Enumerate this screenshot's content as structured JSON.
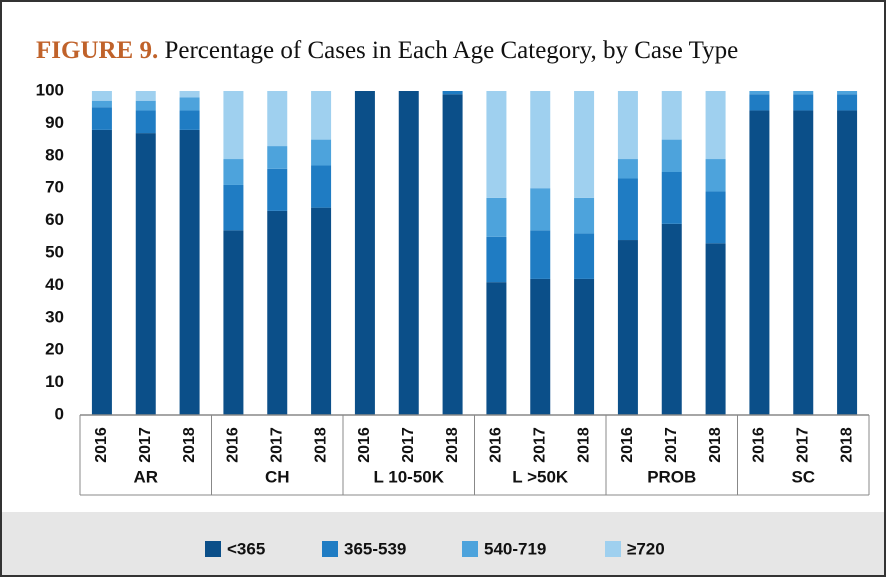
{
  "chart_data": {
    "type": "stacked_bar",
    "title_label": "FIGURE 9.",
    "title": "Percentage of Cases in Each Age Category, by Case Type",
    "categories": [
      "2016",
      "2017",
      "2018",
      "2016",
      "2017",
      "2018",
      "2016",
      "2017",
      "2018",
      "2016",
      "2017",
      "2018",
      "2016",
      "2017",
      "2018",
      "2016",
      "2017",
      "2018"
    ],
    "groups": [
      "AR",
      "CH",
      "L 10-50K",
      "L >50K",
      "PROB",
      "SC"
    ],
    "series": [
      {
        "name": "<365",
        "color": "#0b4f89",
        "values": [
          88,
          87,
          88,
          57,
          63,
          64,
          100,
          100,
          99,
          41,
          42,
          42,
          54,
          59,
          53,
          94,
          94,
          94
        ]
      },
      {
        "name": "365-539",
        "color": "#1f7cc3",
        "values": [
          7,
          7,
          6,
          14,
          13,
          13,
          0,
          0,
          1,
          14,
          15,
          14,
          19,
          16,
          16,
          5,
          5,
          5
        ]
      },
      {
        "name": "540-719",
        "color": "#4da3dc",
        "values": [
          2,
          3,
          4,
          8,
          7,
          8,
          0,
          0,
          0,
          12,
          13,
          11,
          6,
          10,
          10,
          1,
          1,
          1
        ]
      },
      {
        "name": "≥720",
        "color": "#9fd0ef",
        "values": [
          3,
          3,
          2,
          21,
          17,
          15,
          0,
          0,
          0,
          33,
          30,
          33,
          21,
          15,
          21,
          0,
          0,
          0
        ]
      }
    ],
    "ylim": [
      0,
      100
    ],
    "yticks": [
      0,
      10,
      20,
      30,
      40,
      50,
      60,
      70,
      80,
      90,
      100
    ],
    "grid": false
  }
}
